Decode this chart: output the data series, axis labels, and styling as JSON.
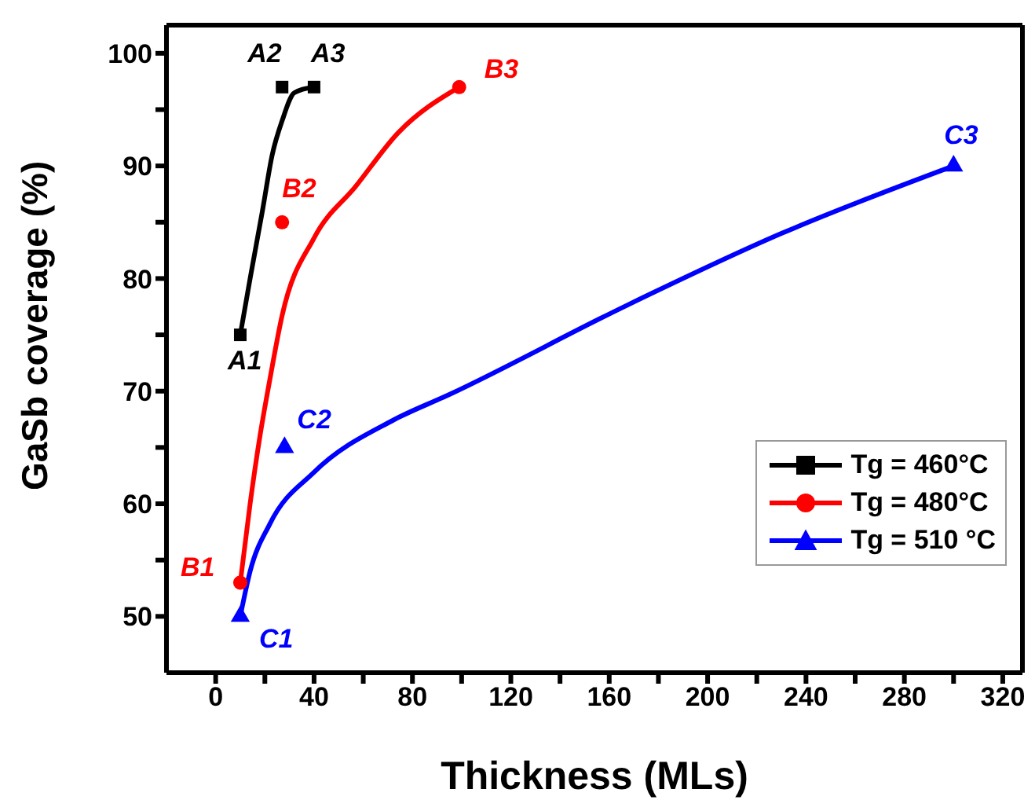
{
  "chart_data": {
    "type": "scatter",
    "xlabel": "Thickness (MLs)",
    "ylabel": "GaSb coverage (%)",
    "xlim": [
      -20,
      328
    ],
    "xticks": [
      0,
      {
        "value": 20,
        "label": null
      },
      40,
      {
        "value": 60,
        "label": null
      },
      80,
      {
        "value": 100,
        "label": null
      },
      120,
      {
        "value": 140,
        "label": null
      },
      160,
      {
        "value": 180,
        "label": null
      },
      200,
      {
        "value": 220,
        "label": null
      },
      240,
      {
        "value": 260,
        "label": null
      },
      280,
      {
        "value": 300,
        "label": null
      },
      320
    ],
    "ylim": [
      45,
      102.5
    ],
    "yticks": [
      50,
      {
        "value": 55,
        "label": null
      },
      60,
      {
        "value": 65,
        "label": null
      },
      70,
      {
        "value": 75,
        "label": null
      },
      80,
      {
        "value": 85,
        "label": null
      },
      90,
      {
        "value": 95,
        "label": null
      },
      100
    ],
    "grid": false,
    "legend": "right",
    "series": [
      {
        "name": "Tg = 460°C",
        "marker": "square",
        "color": "#000000",
        "x": [
          10,
          27,
          40
        ],
        "values": [
          75,
          97,
          97
        ]
      },
      {
        "name": "Tg = 480°C",
        "marker": "circle",
        "color": "#ff0000",
        "x": [
          10,
          27,
          99
        ],
        "values": [
          53,
          85,
          97
        ]
      },
      {
        "name": "Tg = 510 °C",
        "marker": "triangle",
        "color": "#0000ff",
        "x": [
          10,
          28,
          300
        ],
        "values": [
          50,
          65,
          90
        ]
      },
      {
        "type": "line",
        "marker": "none",
        "color": "#000000",
        "x": [
          10,
          14,
          19,
          23,
          27,
          32,
          40
        ],
        "values": [
          75,
          80,
          86,
          91,
          94,
          96.5,
          97
        ]
      },
      {
        "type": "line",
        "marker": "none",
        "color": "#ff0000",
        "x": [
          10,
          14,
          18,
          22,
          27,
          40,
          57,
          74,
          99
        ],
        "values": [
          53,
          60,
          66,
          71,
          76.7,
          83.6,
          88.2,
          92.9,
          97
        ]
      },
      {
        "type": "line",
        "marker": "none",
        "color": "#0000ff",
        "x": [
          10,
          14,
          22,
          40,
          72,
          95,
          167,
          230,
          300
        ],
        "values": [
          50,
          54,
          58.2,
          62.8,
          67.4,
          69.7,
          77.6,
          84,
          90
        ]
      }
    ],
    "annotations": [
      {
        "text": "A1",
        "x": 10,
        "y": 75
      },
      {
        "text": "A2",
        "x": 27,
        "y": 97
      },
      {
        "text": "A3",
        "x": 40,
        "y": 97
      },
      {
        "text": "B1",
        "x": 10,
        "y": 53
      },
      {
        "text": "B2",
        "x": 27,
        "y": 85
      },
      {
        "text": "B3",
        "x": 99,
        "y": 97
      },
      {
        "text": "C1",
        "x": 10,
        "y": 50
      },
      {
        "text": "C2",
        "x": 28,
        "y": 65
      },
      {
        "text": "C3",
        "x": 300,
        "y": 90
      }
    ]
  }
}
